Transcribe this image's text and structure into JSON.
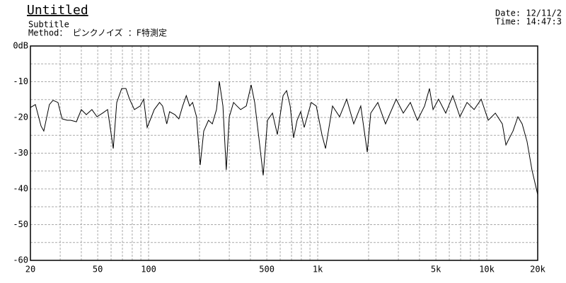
{
  "chart_data": {
    "type": "line",
    "title": "Untitled",
    "subtitle": "Subtitle",
    "method": "Method： ピンクノイズ  ：F特測定",
    "date": "Date: 12/11/2",
    "time": "Time: 14:47:3",
    "xscale": "log",
    "xlim": [
      20,
      20000
    ],
    "ylim": [
      -60,
      0
    ],
    "xticks": [
      20,
      50,
      100,
      500,
      {
        "value": 1000,
        "label": "1k"
      },
      {
        "value": 5000,
        "label": "5k"
      },
      {
        "value": 10000,
        "label": "10k"
      },
      {
        "value": 20000,
        "label": "20k"
      }
    ],
    "xminor": [
      30,
      40,
      60,
      70,
      80,
      90,
      200,
      300,
      400,
      600,
      700,
      800,
      900,
      2000,
      3000,
      4000,
      6000,
      7000,
      8000,
      9000
    ],
    "yticks": [
      {
        "value": 0,
        "label": "0dB"
      },
      -10,
      -20,
      -30,
      -40,
      -50,
      -60
    ],
    "yminor": [
      -5,
      -15,
      -25,
      -35,
      -45,
      -55
    ],
    "grid": true,
    "color": "#000000",
    "x": [
      20,
      21.4,
      23.1,
      24.0,
      25.9,
      27.2,
      29.1,
      30.8,
      33.0,
      34.6,
      37.4,
      40.0,
      42.8,
      46.2,
      49.5,
      53.4,
      57.2,
      61.8,
      64.8,
      69.3,
      73.4,
      77.1,
      82.4,
      89.1,
      93.4,
      98.0,
      102,
      108,
      116,
      121,
      128,
      133,
      143,
      151,
      159,
      167,
      175,
      182,
      192,
      202,
      212,
      226,
      238,
      252,
      262,
      275,
      288,
      300,
      318,
      333,
      350,
      378,
      404,
      424,
      449,
      476,
      505,
      540,
      577,
      624,
      655,
      687,
      720,
      755,
      793,
      832,
      916,
      980,
      1059,
      1112,
      1224,
      1347,
      1483,
      1633,
      1798,
      1963,
      2058,
      2267,
      2518,
      2911,
      3207,
      3531,
      3888,
      4287,
      4582,
      4810,
      5188,
      5716,
      6297,
      6935,
      7638,
      8408,
      9260,
      10195,
      11228,
      12359,
      12971,
      13617,
      14289,
      15276,
      16185,
      17298,
      18495,
      20000
    ],
    "values": [
      -17.2,
      -16.4,
      -22.4,
      -23.8,
      -16.4,
      -15.2,
      -15.8,
      -20.4,
      -20.8,
      -20.8,
      -21.2,
      -17.8,
      -19.2,
      -17.8,
      -19.8,
      -18.8,
      -17.8,
      -28.7,
      -15.8,
      -11.9,
      -11.9,
      -14.9,
      -17.8,
      -16.8,
      -14.9,
      -22.8,
      -20.8,
      -17.8,
      -15.8,
      -16.8,
      -21.8,
      -18.4,
      -19.2,
      -20.4,
      -16.8,
      -13.9,
      -16.8,
      -15.8,
      -19.8,
      -33.3,
      -23.8,
      -20.8,
      -21.8,
      -17.8,
      -9.9,
      -16.8,
      -34.7,
      -19.8,
      -15.8,
      -16.8,
      -17.8,
      -16.8,
      -10.9,
      -15.8,
      -25.7,
      -36.2,
      -20.8,
      -18.8,
      -24.8,
      -13.9,
      -12.5,
      -16.8,
      -25.7,
      -20.8,
      -18.4,
      -22.8,
      -15.8,
      -16.8,
      -24.8,
      -28.7,
      -16.8,
      -19.8,
      -14.9,
      -21.8,
      -16.8,
      -29.7,
      -18.8,
      -15.8,
      -21.8,
      -14.9,
      -18.8,
      -15.8,
      -20.8,
      -16.8,
      -11.9,
      -17.8,
      -14.9,
      -18.8,
      -13.9,
      -19.8,
      -15.8,
      -17.8,
      -14.9,
      -20.8,
      -18.8,
      -21.8,
      -27.7,
      -25.7,
      -23.8,
      -19.8,
      -21.8,
      -26.7,
      -34.7,
      -41.6
    ]
  }
}
